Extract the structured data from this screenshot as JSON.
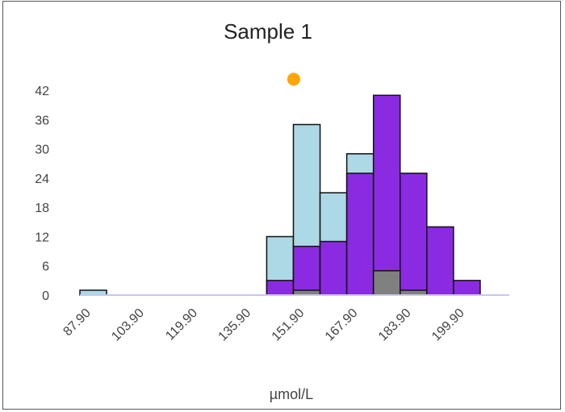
{
  "chart_data": {
    "type": "bar",
    "title": "Sample 1",
    "xlabel": "µmol/L",
    "ylabel": "",
    "x_tick_labels": [
      "87.90",
      "103.90",
      "119.90",
      "135.90",
      "151.90",
      "167.90",
      "183.90",
      "199.90"
    ],
    "y_ticks": [
      0,
      6,
      12,
      18,
      24,
      30,
      36,
      42
    ],
    "xlim": [
      87.9,
      215.9
    ],
    "ylim": [
      0,
      46
    ],
    "bin_width": 8,
    "bin_starts": [
      87.9,
      143.9,
      151.9,
      159.9,
      167.9,
      175.9,
      183.9,
      191.9,
      199.9
    ],
    "series": [
      {
        "values": [
          1,
          12,
          35,
          21,
          29,
          0,
          0,
          0,
          0
        ],
        "color": "#add8e6"
      },
      {
        "values": [
          0,
          3,
          10,
          11,
          25,
          41,
          25,
          14,
          3
        ],
        "color": "#8a2be2"
      },
      {
        "values": [
          0,
          0,
          1,
          0,
          0,
          5,
          1,
          0,
          0
        ],
        "color": "#808080"
      }
    ],
    "marker": {
      "x": 152.0,
      "y": 44.3,
      "color": "#ffa500"
    },
    "grid": false,
    "legend": "none",
    "baseline_color": "#c8c8ee"
  }
}
